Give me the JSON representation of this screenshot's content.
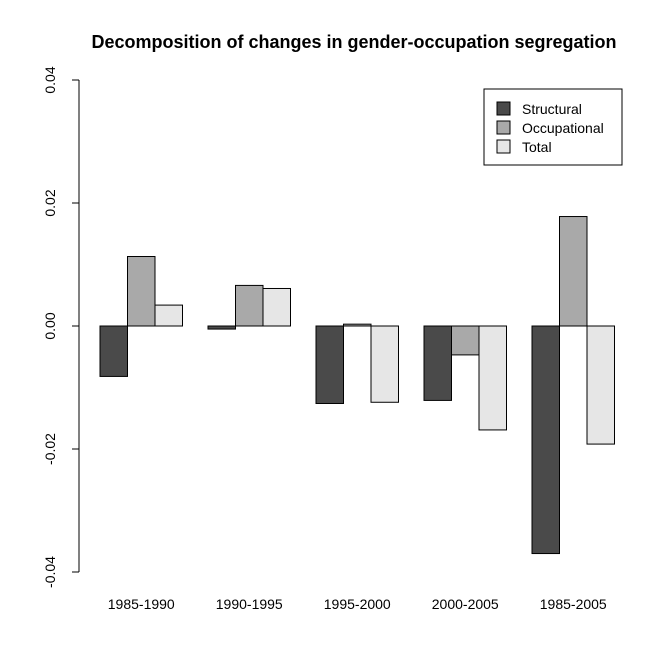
{
  "chart_data": {
    "type": "bar",
    "title": "Decomposition of changes in gender-occupation segregation",
    "xlabel": "",
    "ylabel": "",
    "categories": [
      "1985-1990",
      "1990-1995",
      "1995-2000",
      "2000-2005",
      "1985-2005"
    ],
    "series": [
      {
        "name": "Structural",
        "color": "#4a4a4a",
        "values": [
          -0.0082,
          -0.0005,
          -0.0126,
          -0.0121,
          -0.037
        ]
      },
      {
        "name": "Occupational",
        "color": "#a9a9a9",
        "values": [
          0.0113,
          0.0066,
          0.0003,
          -0.0047,
          0.0178
        ]
      },
      {
        "name": "Total",
        "color": "#e6e6e6",
        "values": [
          0.0034,
          0.0061,
          -0.0124,
          -0.0169,
          -0.0192
        ]
      }
    ],
    "ylim": [
      -0.04,
      0.04
    ],
    "yticks": [
      -0.04,
      -0.02,
      0.0,
      0.02,
      0.04
    ],
    "ytick_labels": [
      "-0.04",
      "-0.02",
      "0.00",
      "0.02",
      "0.04"
    ],
    "grid": false,
    "legend_position": "top-right"
  }
}
